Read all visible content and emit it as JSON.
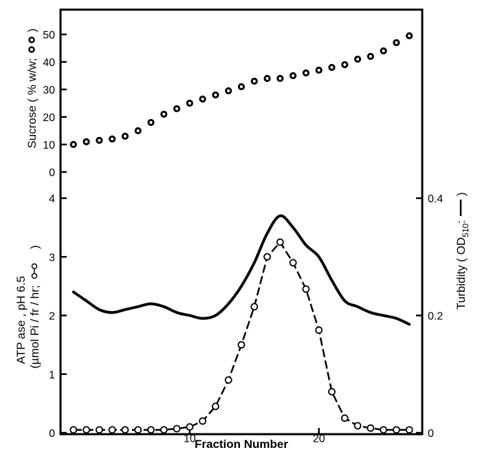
{
  "chart_data": [
    {
      "type": "scatter",
      "panel": "top",
      "ylabel": "Sucrose ( % w/w;",
      "ylabel_symbol": "filled-ring",
      "ylim": [
        0,
        60
      ],
      "yticks": [
        "0",
        "10",
        "20",
        "30",
        "40",
        "50"
      ],
      "series": [
        {
          "marker": "thick-open-circle",
          "x": [
            1,
            2,
            3,
            4,
            5,
            6,
            7,
            8,
            9,
            10,
            11,
            12,
            13,
            14,
            15,
            16,
            17,
            18,
            19,
            20,
            21,
            22,
            23,
            24,
            25,
            26,
            27
          ],
          "values": [
            10,
            11,
            11.5,
            12,
            13,
            15,
            18,
            21,
            23,
            25,
            26.5,
            28,
            29.5,
            31,
            33,
            34,
            34,
            35,
            36,
            37,
            38,
            39,
            41,
            42,
            44,
            47,
            49.5
          ]
        }
      ]
    },
    {
      "type": "line",
      "panel": "bottom",
      "xlabel": "Fraction Number",
      "xlim": [
        0,
        28
      ],
      "xticks": [
        "10",
        "20"
      ],
      "ylabel_line1": "ATP ase , pH 6.5",
      "ylabel_line2": "(µmol Pi / fr / hr;",
      "ylim": [
        0,
        4
      ],
      "yticks": [
        "0",
        "1",
        "2",
        "3",
        "4"
      ],
      "y2label": "Turbidity ( OD",
      "y2label_sub": "510",
      "y2label_end": ":",
      "y2lim": [
        0,
        0.4
      ],
      "y2ticks": [
        "0",
        "0.2",
        "0.4"
      ],
      "series": [
        {
          "style": "dashed line with open circles",
          "axis": "left",
          "x": [
            1,
            2,
            3,
            4,
            5,
            6,
            7,
            8,
            9,
            10,
            11,
            12,
            13,
            14,
            15,
            16,
            17,
            18,
            19,
            20,
            21,
            22,
            23,
            24,
            25,
            26,
            27
          ],
          "values": [
            0.05,
            0.05,
            0.05,
            0.05,
            0.05,
            0.05,
            0.05,
            0.05,
            0.07,
            0.1,
            0.2,
            0.45,
            0.9,
            1.5,
            2.15,
            3.0,
            3.25,
            2.9,
            2.45,
            1.75,
            0.7,
            0.25,
            0.12,
            0.08,
            0.05,
            0.05,
            0.05
          ]
        },
        {
          "style": "solid thick line",
          "axis": "right",
          "x": [
            1,
            2,
            3,
            4,
            5,
            6,
            7,
            8,
            9,
            10,
            11,
            12,
            13,
            14,
            15,
            16,
            17,
            18,
            19,
            20,
            21,
            22,
            23,
            24,
            25,
            26,
            27
          ],
          "values": [
            0.24,
            0.225,
            0.21,
            0.205,
            0.21,
            0.215,
            0.22,
            0.215,
            0.205,
            0.2,
            0.195,
            0.2,
            0.22,
            0.25,
            0.29,
            0.34,
            0.37,
            0.35,
            0.32,
            0.3,
            0.26,
            0.225,
            0.215,
            0.205,
            0.2,
            0.195,
            0.185
          ]
        }
      ]
    }
  ]
}
